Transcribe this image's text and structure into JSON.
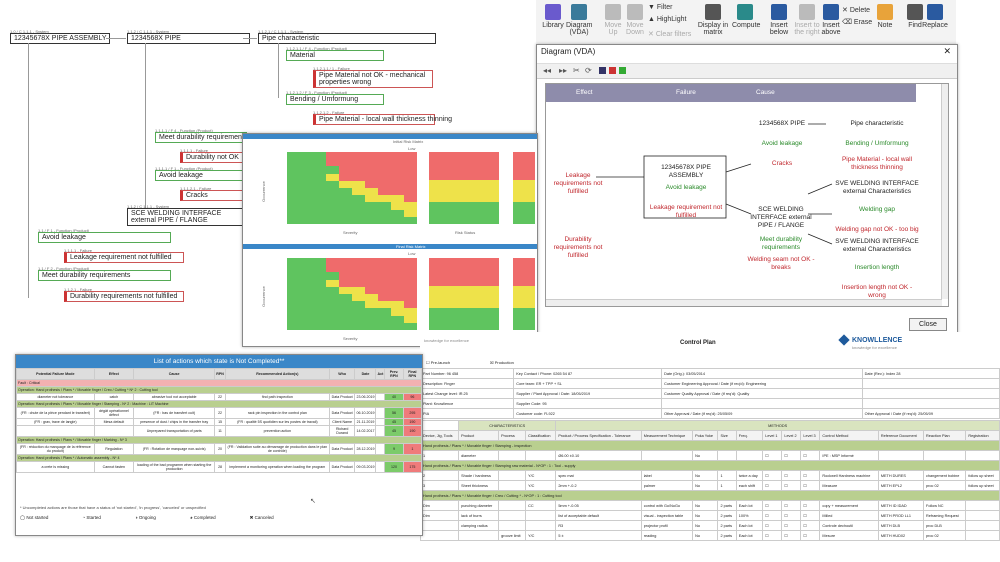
{
  "tree": {
    "root_tag": "1.0 / C 1.1.1 - System",
    "root": "12345678X PIPE ASSEMBLY",
    "pipe_tag": "1.1.2 / C 1.1.1 - System",
    "pipe": "1234568X PIPE",
    "pc_tag": "1.1.2.1 / C 1.1.1 - System",
    "pipe_char": "Pipe characteristic",
    "material_tag": "1.1.2.1.1 / F 4 - Function (Product)",
    "material": "Material",
    "mat_fail_tag": "1.1.2.1.1 / 1 - Failure",
    "mat_fail": "Pipe Material not OK - mechanical properties wrong",
    "bend_tag": "1.1.2.1.2 / F 3 - Function (Product)",
    "bend": "Bending / Umformung",
    "bend_fail_tag": "1.1.2.1.2 - Failure",
    "bend_fail": "Pipe Material - local wall thickness thinning",
    "durab_tag": "1.1.1.1 / F 4 - Function (Product)",
    "durab": "Meet durability requirements",
    "dnok_tag": "1.1.1.1 - Failure",
    "dnok": "Durability not OK",
    "avoid_tag": "1.1.1.1 / F 1 - Function (Product)",
    "avoid": "Avoid leakage",
    "cracks_tag": "1.1.1.2.1 - Failure",
    "cracks": "Cracks",
    "sce_tag": "1.1.2 / C 1.1.1 - System",
    "sce": "SCE WELDING INTERFACE external PIPE / FLANGE",
    "avoid2_tag": "1.1 / F 1 - Function (Product)",
    "avoid2": "Avoid leakage",
    "leak_tag": "1.1.1.1 - Failure",
    "leak": "Leakage requirement not fulfilled",
    "meet_tag": "1.1 / F 2 - Function (Product)",
    "meet": "Meet durability requirements",
    "dreq_tag": "1.1.2.1 - Failure",
    "dreq": "Durability requirements not fulfilled"
  },
  "ribbon": {
    "buttons": [
      {
        "label": "Library",
        "icon": "library-icon",
        "color": "#6a5acd",
        "enabled": true
      },
      {
        "label": "Diagram (VDA)",
        "icon": "diagram-icon",
        "color": "#3a7a9a",
        "enabled": true
      },
      {
        "label": "Move Up",
        "icon": "move-up-icon",
        "color": "#bbbbbb",
        "enabled": false
      },
      {
        "label": "Move Down",
        "icon": "move-down-icon",
        "color": "#bbbbbb",
        "enabled": false
      },
      {
        "label": "Display in matrix",
        "icon": "matrix-icon",
        "color": "#555555",
        "enabled": true
      },
      {
        "label": "Compute",
        "icon": "compute-icon",
        "color": "#2a8a8a",
        "enabled": true
      },
      {
        "label": "Insert below",
        "icon": "insert-below-icon",
        "color": "#2a5aa0",
        "enabled": true
      },
      {
        "label": "Insert to the right",
        "icon": "insert-right-icon",
        "color": "#bbbbbb",
        "enabled": false
      },
      {
        "label": "Insert above",
        "icon": "insert-above-icon",
        "color": "#2a5aa0",
        "enabled": true
      },
      {
        "label": "Note",
        "icon": "note-icon",
        "color": "#e8a33a",
        "enabled": true
      },
      {
        "label": "Find",
        "icon": "find-icon",
        "color": "#555555",
        "enabled": true
      },
      {
        "label": "Replace",
        "icon": "replace-icon",
        "color": "#2a5aa0",
        "enabled": true
      }
    ],
    "filter": "Filter",
    "highlight": "HighLight",
    "clear": "Clear filters",
    "delete": "Delete",
    "erase": "Erase"
  },
  "diagram": {
    "title": "Diagram (VDA)",
    "col_effect": "Effect",
    "col_failure": "Failure",
    "col_cause": "Cause",
    "center_title": "12345678X PIPE ASSEMBLY",
    "center_func": "Avoid leakage",
    "center_fail": "Leakage requirement not fulfilled",
    "effect1": "Leakage requirements not fulfilled",
    "effect2": "Durability requirements not fulfilled",
    "pipe": "1234568X PIPE",
    "pipe_func": "Avoid leakage",
    "pipe_fail": "Cracks",
    "pipechar": "Pipe characteristic",
    "pipechar_func": "Bending / Umformung",
    "pipechar_fail": "Pipe Material - local wall thickness thinning",
    "sce": "SCE WELDING INTERFACE external PIPE / FLANGE",
    "sce_func": "Meet durability requirements",
    "sce_fail": "Welding seam not OK - breaks",
    "sve1": "SVE WELDING INTERFACE external Characteristics",
    "sve1_func": "Welding gap",
    "sve1_fail": "Welding gap not OK - too big",
    "sve2": "SVE WELDING INTERFACE external Characteristics",
    "sve2_func": "Insertion length",
    "sve2_fail": "Insertion length not OK - wrong",
    "close": "Close"
  },
  "risk": {
    "title_top": "Initial Risk Matrix",
    "title_bottom": "Final Risk Matrix",
    "y_label": "Occurrence",
    "x_label": "Severity",
    "status_label": "Risk Status",
    "legend": "Low"
  },
  "actions": {
    "title": "List of actions which state is Not Completed**",
    "headers": [
      "Potential Failure Mode",
      "Effect",
      "Cause",
      "RPN",
      "Recommended Action(s)",
      "Who",
      "Date",
      "Act",
      "Prev. RPN",
      "Final RPN"
    ],
    "crit": "Fault : Critical",
    "op1": "Operation: Hand prothesis / Plans * / Movable finger / Creo / Cutting * N* 2 : Cutting tool",
    "row1": [
      "diameter not tolerance",
      "catch",
      "abrasive tool not acceptable",
      "22",
      "find path inspection",
      "Data Product",
      "23.06.2019",
      "",
      "40",
      "96"
    ],
    "op2": "Operation: Hand prothesis / Plans * / Movable finger / Stamping - N* 2 : Machine : LIT Machine",
    "row2": [
      "(FR : chute de la pièce pendant le transfert)",
      "dégât opérationnel défect",
      "(FR : bas de transfert cuit)",
      "22",
      "rack pin inspection in the control plan",
      "Data Product",
      "06.10.2019",
      "",
      "56",
      "295"
    ],
    "row3": [
      "(FR : grav, traxe de langle)",
      "Mesa default",
      "presence of dust / chips in the transfer tray",
      "15",
      "(FR : qualité 5S quotidien sur les postes de travail)",
      "Client Name",
      "21.11.2019",
      "",
      "45",
      "190"
    ],
    "row3b": [
      "",
      "",
      "Unprepared transportation of parts",
      "11",
      "prevention action",
      "Richard Durand",
      "14.02.2017",
      "",
      "45",
      "190"
    ],
    "op3": "Operation: Hand prothesis / Plans * / Movable finger / Marking - N* 3",
    "row4": [
      "(FR : réduction du marquage de la référence du produit)",
      "Regulation",
      "(FR : Rotation de marquage non-suivis)",
      "20",
      "(FR : Validation suite au démarrage de production dans le plan de contrôle)",
      "Data Product",
      "28.12.2019",
      "",
      "9",
      "1"
    ],
    "op4": "Operation: Hand prothesis / Plans * / Automatic assembly - N* 4",
    "row5": [
      "a crete is missing",
      "Cannot fasten",
      "loading of the bad programm when starting the production",
      "28",
      "implement a monitoring operation when loading the program",
      "Data Product",
      "09.03.2019",
      "",
      "120",
      "175"
    ],
    "footnote": "* Uncompleted actions are those that have a status of 'not started', 'in progress', 'canceled' or unspecified",
    "legend": [
      "Not started",
      "Started",
      "Ongoing",
      "Completed",
      "Canceled"
    ]
  },
  "control_plan": {
    "brand": "KNOWLLENCE",
    "brand_sub": "knowledge for excellence",
    "title": "Control Plan",
    "prelaunch": "Pre-launch",
    "production": "Production",
    "header_rows": [
      [
        "Part Number: 96 458",
        "Key Contact / Phone: 0265 54 87",
        "Date (Orig.): 03/05/2014",
        "Date (Rev.): Index 28"
      ],
      [
        "Description: Finger",
        "Core team: ER + TPP + SL",
        "Customer Engineering Approval / Date (if req'd): Engineering",
        ""
      ],
      [
        "Latest Change level: IR.25",
        "Supplier / Plant Approval / Date: 18/05/2019",
        "Customer Quality Approval / Date (if req'd): Quality",
        ""
      ],
      [
        "Plant: Knowlience",
        "Supplier Code: 95",
        "",
        ""
      ],
      [
        "PIA",
        "Customer code: FL922",
        "Other Approval / Date (if req'd): 25/05/09",
        "Other Approval / Date (if req'd): 25/05/09"
      ]
    ],
    "col_headers": [
      "Device, Jig, Tools",
      "Product",
      "Process",
      "Classification",
      "Product / Process Specification - Tolerance",
      "Measurement Technique",
      "Poka Yoke",
      "Size",
      "Freq.",
      "Level 1",
      "Level 2",
      "Level 3",
      "Control Method",
      "Reference Document",
      "Reaction Plan",
      "Registration"
    ],
    "group_characteristics": "CHARACTERISTICS",
    "group_methods": "METHODS",
    "group_sample": "Sample",
    "sec1": "Hand prothesis / Plans * / Movable finger / Stamping - inspection",
    "r1": [
      "1",
      "diameter",
      "",
      "",
      "Ø6.00 ±0.10",
      "",
      "No",
      "",
      "",
      "",
      "",
      "",
      "IPE : MSP Informé",
      "",
      "",
      ""
    ],
    "sec2": "Hand prothesis / Plans * / Movable finger / Stamping raw material - N*OP : 1 : Tool - supply",
    "r2": [
      "2",
      "Shade / hardness",
      "",
      "Y/C",
      "spec mat",
      "label",
      "No",
      "1",
      "twice a day",
      "",
      "",
      "",
      "Rockwell Hardness machine",
      "METH DURES",
      "changement bobine",
      "follow up sheet"
    ],
    "r3": [
      "3",
      "Sheet thickness",
      "",
      "Y/C",
      "2mm +-0.2",
      "palmer",
      "No",
      "1",
      "each shift",
      "",
      "",
      "",
      "Measure",
      "METH EPL2",
      "proc 02",
      "follow up sheet"
    ],
    "sec3": "Hand prothesis / Plans * / Movable finger / Creo / Cutting * - N*OP : 1 : Cutting tool",
    "r4": [
      "Dim",
      "punching diameter",
      "",
      "CC",
      "5mm +-0.05",
      "control with Go/NoGo",
      "No",
      "2 parts",
      "Each lot",
      "",
      "",
      "",
      "copy + measurement",
      "METH ID IDAD",
      "Follow NC",
      ""
    ],
    "r5": [
      "Dim",
      "lack of burrs",
      "",
      "",
      "list of acceptable default",
      "visual - inspection table",
      "No",
      "2 parts",
      "100%",
      "",
      "",
      "",
      "Milled",
      "METH PROD LL1",
      "Reframing Request",
      ""
    ],
    "r6": [
      "",
      "clamping radius",
      "",
      "",
      "R3",
      "projector profil",
      "No",
      "2 parts",
      "Each lot",
      "",
      "",
      "",
      "Controle dechoutil",
      "METH DLB",
      "proc DLB",
      ""
    ],
    "r7": [
      "",
      "",
      "groove limit",
      "Y/C",
      "5 ±",
      "reading",
      "No",
      "2 parts",
      "Each lot",
      "",
      "",
      "",
      "Mesure",
      "METH HUD02",
      "proc 02",
      ""
    ]
  }
}
